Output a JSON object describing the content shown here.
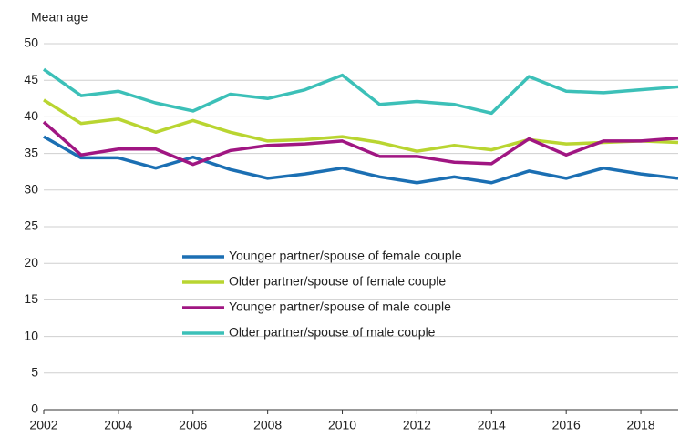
{
  "chart_data": {
    "type": "line",
    "y_label": "Mean age",
    "x": [
      2002,
      2003,
      2004,
      2005,
      2006,
      2007,
      2008,
      2009,
      2010,
      2011,
      2012,
      2013,
      2014,
      2015,
      2016,
      2017,
      2018,
      2019
    ],
    "xlim": [
      2002,
      2019
    ],
    "xticks": [
      2002,
      2004,
      2006,
      2008,
      2010,
      2012,
      2014,
      2016,
      2018
    ],
    "ylim": [
      0,
      50
    ],
    "yticks": [
      0,
      5,
      10,
      15,
      20,
      25,
      30,
      35,
      40,
      45,
      50
    ],
    "grid": true,
    "series": [
      {
        "name": "Younger partner/spouse of female couple",
        "color": "#1b6fb3",
        "values": [
          37.3,
          34.4,
          34.4,
          33.0,
          34.5,
          32.8,
          31.6,
          32.2,
          33.0,
          31.8,
          31.0,
          31.8,
          31.0,
          32.6,
          31.6,
          33.0,
          32.2,
          31.6
        ]
      },
      {
        "name": "Older partner/spouse of female couple",
        "color": "#b9d531",
        "values": [
          42.3,
          39.1,
          39.7,
          37.9,
          39.5,
          37.9,
          36.7,
          36.9,
          37.3,
          36.5,
          35.3,
          36.1,
          35.5,
          36.9,
          36.3,
          36.5,
          36.7,
          36.5
        ]
      },
      {
        "name": "Younger partner/spouse of male couple",
        "color": "#a01682",
        "values": [
          39.3,
          34.8,
          35.6,
          35.6,
          33.5,
          35.4,
          36.1,
          36.3,
          36.7,
          34.6,
          34.6,
          33.8,
          33.6,
          37.0,
          34.8,
          36.7,
          36.7,
          37.1
        ]
      },
      {
        "name": "Older partner/spouse of male couple",
        "color": "#3cc0b8",
        "values": [
          46.5,
          42.9,
          43.5,
          41.9,
          40.8,
          43.1,
          42.5,
          43.7,
          45.7,
          41.7,
          42.1,
          41.7,
          40.5,
          45.5,
          43.5,
          43.3,
          43.7,
          44.1
        ]
      }
    ]
  }
}
